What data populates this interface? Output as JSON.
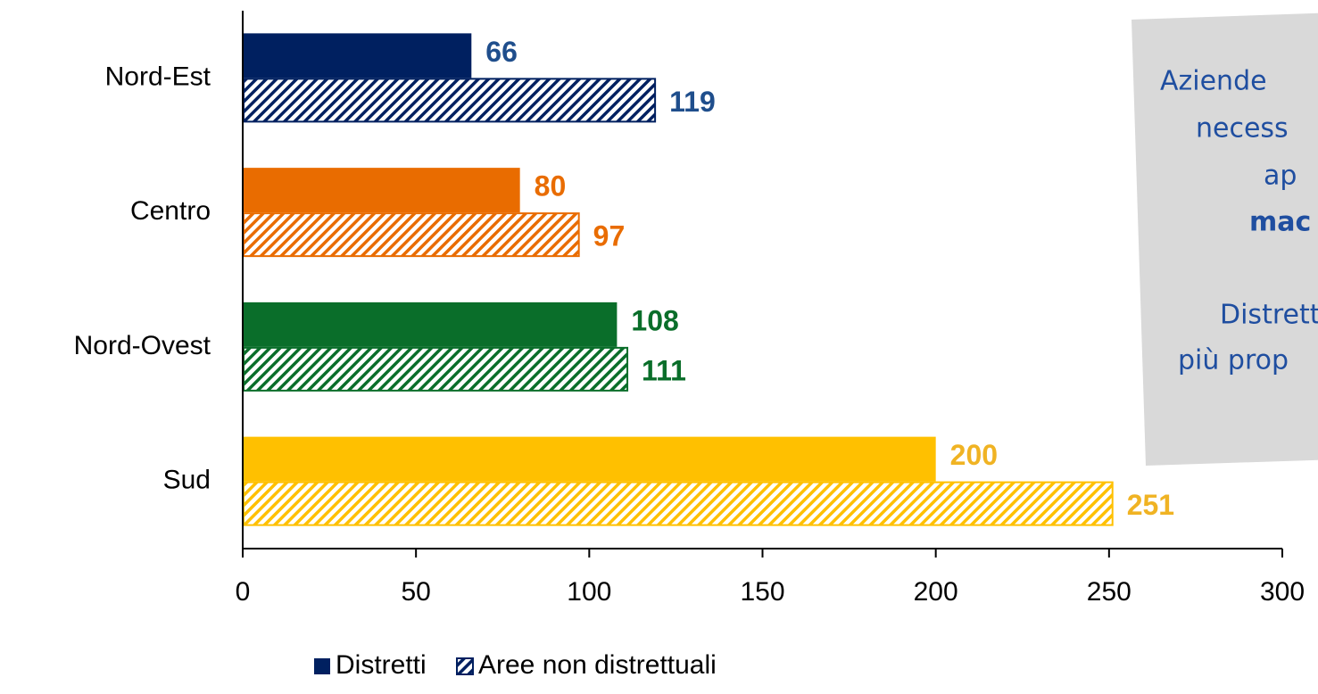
{
  "chart_data": {
    "type": "hbar",
    "categories": [
      "Nord-Est",
      "Centro",
      "Nord-Ovest",
      "Sud"
    ],
    "category_colors": [
      "#002060",
      "#e96c00",
      "#0a6e2a",
      "#ffc000"
    ],
    "value_label_colors": [
      "#1f4e8c",
      "#e96c00",
      "#0a6e2a",
      "#f0b323"
    ],
    "series": [
      {
        "name": "Distretti",
        "pattern": "solid",
        "values": [
          66,
          80,
          108,
          200
        ]
      },
      {
        "name": "Aree non distrettuali",
        "pattern": "hatch",
        "values": [
          119,
          97,
          111,
          251
        ]
      }
    ],
    "xlim": [
      0,
      300
    ],
    "xticks": [
      0,
      50,
      100,
      150,
      200,
      250,
      300
    ],
    "grid": false,
    "legend": "bottom",
    "legend_color": "#002060",
    "annotation": {
      "color": "#1f4ea0",
      "lines": [
        {
          "text": "Aziende",
          "bold": false
        },
        {
          "text": "necess",
          "bold": false
        },
        {
          "text": "ap",
          "bold": false
        },
        {
          "text": "mac",
          "bold": true
        },
        {
          "text": "Distrett",
          "bold": false
        },
        {
          "text": "più prop",
          "bold": false
        }
      ]
    }
  }
}
